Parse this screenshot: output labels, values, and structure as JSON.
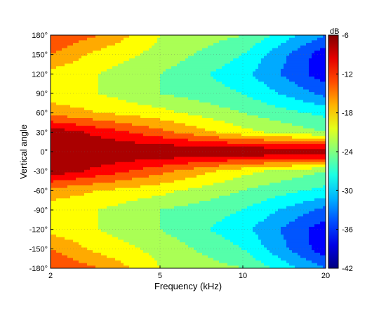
{
  "chart_data": {
    "type": "heatmap",
    "subtype": "filled-contour",
    "xlabel": "Frequency (kHz)",
    "ylabel": "Vertical angle",
    "x_scale": "log",
    "xlim": [
      2,
      20
    ],
    "ylim": [
      -180,
      180
    ],
    "x_ticks": [
      2,
      5,
      10,
      20
    ],
    "x_tick_labels": [
      "2",
      "5",
      "10",
      "20"
    ],
    "y_ticks": [
      -180,
      -150,
      -120,
      -90,
      -60,
      -30,
      0,
      30,
      60,
      90,
      120,
      150,
      180
    ],
    "y_tick_labels": [
      "-180°",
      "-150°",
      "-120°",
      "-90°",
      "-60°",
      "-30°",
      "0°",
      "30°",
      "60°",
      "90°",
      "120°",
      "150°",
      "180°"
    ],
    "colorbar": {
      "unit": "dB",
      "range": [
        -42,
        -6
      ],
      "ticks": [
        -42,
        -36,
        -30,
        -24,
        -18,
        -12,
        -6
      ],
      "tick_labels": [
        "-42",
        "-36",
        "-30",
        "-24",
        "-18",
        "-12",
        "-6"
      ],
      "colormap": "jet"
    },
    "grid": true,
    "symmetric_about_zero_angle": true,
    "level_db_at_angle_and_frequency": {
      "frequencies_khz": [
        2,
        3,
        5,
        10,
        20
      ],
      "angles_deg": [
        0,
        30,
        60,
        90,
        120,
        150,
        180
      ],
      "values": [
        [
          -6,
          -6,
          -6,
          -6,
          -6
        ],
        [
          -7,
          -10,
          -14,
          -20,
          -24
        ],
        [
          -16,
          -18,
          -20,
          -24,
          -28
        ],
        [
          -20,
          -21,
          -24,
          -27,
          -34
        ],
        [
          -19,
          -21,
          -24,
          -29,
          -38
        ],
        [
          -15,
          -19,
          -22,
          -27,
          -38
        ],
        [
          -12,
          -15,
          -21,
          -24,
          -33
        ]
      ]
    }
  }
}
